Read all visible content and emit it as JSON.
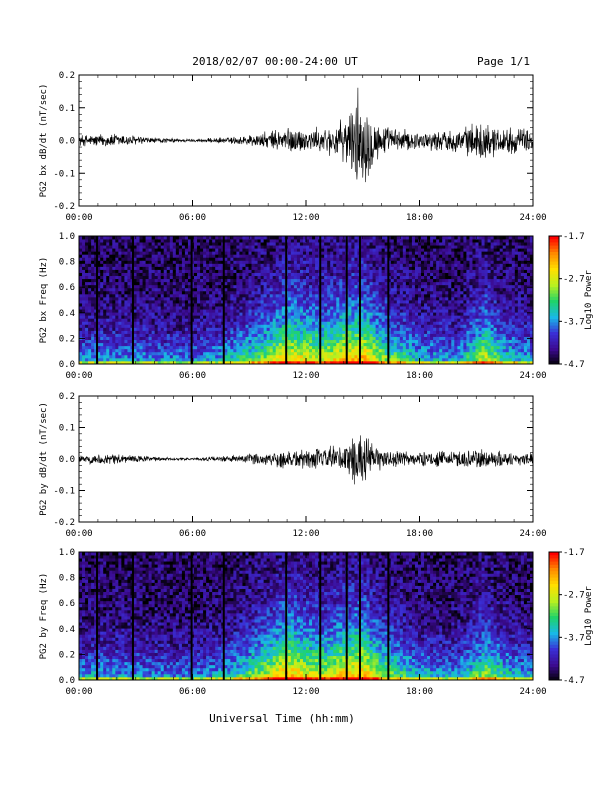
{
  "header": {
    "title": "2018/02/07  00:00-24:00 UT",
    "page": "Page 1/1"
  },
  "footer": {
    "xlabel": "Universal Time (hh:mm)"
  },
  "colors": {
    "trace": "#000000",
    "colormap": [
      "#000000",
      "#3b0a8f",
      "#3a2fd6",
      "#19b8e8",
      "#1fd36a",
      "#b8f020",
      "#ffe000",
      "#ff8a00",
      "#ff0000"
    ]
  },
  "chart_data": [
    {
      "type": "line",
      "ylabel": "PG2 bx dB/dt (nT/sec)",
      "xlim": [
        "00:00",
        "24:00"
      ],
      "ylim": [
        -0.2,
        0.2
      ],
      "yticks": [
        "0.2",
        "0.1",
        "0.0",
        "-0.1",
        "-0.2"
      ],
      "xticks": [
        "00:00",
        "06:00",
        "12:00",
        "18:00",
        "24:00"
      ],
      "x_hours": [
        0,
        2,
        4,
        6,
        8,
        10,
        11,
        12,
        13,
        14,
        14.8,
        16,
        18,
        20,
        21.5,
        22,
        24
      ],
      "amplitude": [
        0.02,
        0.025,
        0.01,
        0.005,
        0.012,
        0.03,
        0.05,
        0.04,
        0.045,
        0.07,
        0.18,
        0.05,
        0.03,
        0.04,
        0.07,
        0.05,
        0.04
      ]
    },
    {
      "type": "heatmap",
      "ylabel": "PG2 bx Freq (Hz)",
      "xlim": [
        "00:00",
        "24:00"
      ],
      "ylim": [
        0.0,
        1.0
      ],
      "yticks": [
        "1.0",
        "0.8",
        "0.6",
        "0.4",
        "0.2",
        "0.0"
      ],
      "xticks": [
        "00:00",
        "06:00",
        "12:00",
        "18:00",
        "24:00"
      ],
      "colorbar": {
        "label": "Log10 Power",
        "ticks": [
          "-1.7",
          "-2.7",
          "-3.7",
          "-4.7"
        ],
        "range": [
          -4.7,
          -1.7
        ]
      },
      "x_hours": [
        0,
        3,
        6,
        8,
        10,
        11,
        12,
        13,
        14,
        15,
        16,
        18,
        20,
        21.5,
        22.5,
        24
      ],
      "low_freq_level": [
        0.3,
        0.3,
        0.25,
        0.35,
        0.55,
        0.7,
        0.65,
        0.6,
        0.7,
        0.75,
        0.55,
        0.35,
        0.3,
        0.6,
        0.4,
        0.3
      ],
      "gap_hours": [
        0.9,
        2.8,
        5.9,
        7.6,
        10.9,
        12.7,
        14.1,
        14.8,
        16.3
      ]
    },
    {
      "type": "line",
      "ylabel": "PG2 by dB/dt (nT/sec)",
      "xlim": [
        "00:00",
        "24:00"
      ],
      "ylim": [
        -0.2,
        0.2
      ],
      "yticks": [
        "0.2",
        "0.1",
        "0.0",
        "-0.1",
        "-0.2"
      ],
      "xticks": [
        "00:00",
        "06:00",
        "12:00",
        "18:00",
        "24:00"
      ],
      "x_hours": [
        0,
        2,
        4,
        6,
        8,
        10,
        11,
        12,
        13,
        14,
        14.8,
        16,
        18,
        20,
        21.5,
        22,
        24
      ],
      "amplitude": [
        0.015,
        0.02,
        0.008,
        0.004,
        0.012,
        0.025,
        0.04,
        0.035,
        0.04,
        0.06,
        0.1,
        0.035,
        0.025,
        0.03,
        0.04,
        0.03,
        0.02
      ]
    },
    {
      "type": "heatmap",
      "ylabel": "PG2 by Freq (Hz)",
      "xlim": [
        "00:00",
        "24:00"
      ],
      "ylim": [
        0.0,
        1.0
      ],
      "yticks": [
        "1.0",
        "0.8",
        "0.6",
        "0.4",
        "0.2",
        "0.0"
      ],
      "xticks": [
        "00:00",
        "06:00",
        "12:00",
        "18:00",
        "24:00"
      ],
      "colorbar": {
        "label": "Log10 Power",
        "ticks": [
          "-1.7",
          "-2.7",
          "-3.7",
          "-4.7"
        ],
        "range": [
          -4.7,
          -1.7
        ]
      },
      "x_hours": [
        0,
        3,
        6,
        8,
        10,
        11,
        12,
        13,
        14,
        15,
        16,
        18,
        20,
        21.5,
        22.5,
        24
      ],
      "low_freq_level": [
        0.3,
        0.3,
        0.25,
        0.35,
        0.6,
        0.75,
        0.65,
        0.6,
        0.7,
        0.75,
        0.55,
        0.35,
        0.3,
        0.55,
        0.4,
        0.3
      ],
      "gap_hours": [
        0.9,
        2.8,
        5.9,
        7.6,
        10.9,
        12.7,
        14.1,
        14.8,
        16.3
      ]
    }
  ]
}
